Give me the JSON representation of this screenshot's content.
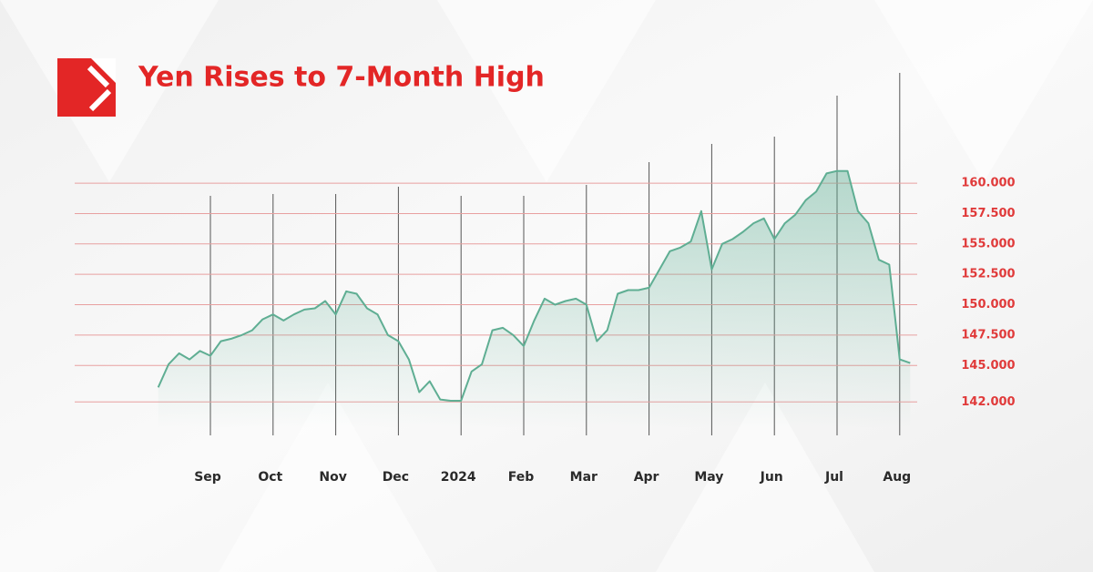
{
  "chart_data": {
    "type": "line",
    "title": "Yen Rises to 7-Month High",
    "categories": [
      null,
      null,
      null,
      null,
      null,
      "Sep",
      null,
      null,
      null,
      null,
      null,
      "Oct",
      null,
      null,
      null,
      null,
      null,
      "Nov",
      null,
      null,
      null,
      null,
      null,
      "Dec",
      null,
      null,
      null,
      null,
      null,
      "2024",
      null,
      null,
      null,
      null,
      null,
      "Feb",
      null,
      null,
      null,
      null,
      null,
      "Mar",
      null,
      null,
      null,
      null,
      null,
      "Apr",
      null,
      null,
      null,
      null,
      null,
      "May",
      null,
      null,
      null,
      null,
      null,
      "Jun",
      null,
      null,
      null,
      null,
      null,
      "Jul",
      null,
      null,
      null,
      null,
      null,
      "Aug",
      null
    ],
    "values": [
      143.2,
      145.1,
      146,
      145.5,
      146.2,
      145.8,
      147,
      147.2,
      147.5,
      147.9,
      148.8,
      149.2,
      148.7,
      149.2,
      149.6,
      149.7,
      150.3,
      149.2,
      151.1,
      150.9,
      149.7,
      149.2,
      147.5,
      147,
      145.5,
      142.8,
      143.7,
      142.2,
      142.1,
      142.1,
      144.5,
      145.1,
      147.9,
      148.1,
      147.5,
      146.6,
      148.7,
      150.5,
      150,
      150.3,
      150.5,
      150,
      147,
      147.9,
      150.9,
      151.2,
      151.2,
      151.4,
      152.9,
      154.4,
      154.7,
      155.2,
      157.7,
      152.9,
      155,
      155.4,
      156,
      156.7,
      157.1,
      155.4,
      156.7,
      157.4,
      158.6,
      159.3,
      160.8,
      161,
      161,
      157.7,
      156.7,
      153.7,
      153.3,
      145.5,
      145.2
    ],
    "color": "#5fae93",
    "ylim": [
      140,
      166
    ],
    "yticks": [
      {
        "value": 160,
        "label": "160.000"
      },
      {
        "value": 157.5,
        "label": "157.500"
      },
      {
        "value": 155,
        "label": "155.000"
      },
      {
        "value": 152.5,
        "label": "152.500"
      },
      {
        "value": 150,
        "label": "150.000"
      },
      {
        "value": 147.5,
        "label": "147.500"
      },
      {
        "value": 145,
        "label": "145.000"
      },
      {
        "value": 142,
        "label": "142.000"
      }
    ],
    "grid": true
  }
}
